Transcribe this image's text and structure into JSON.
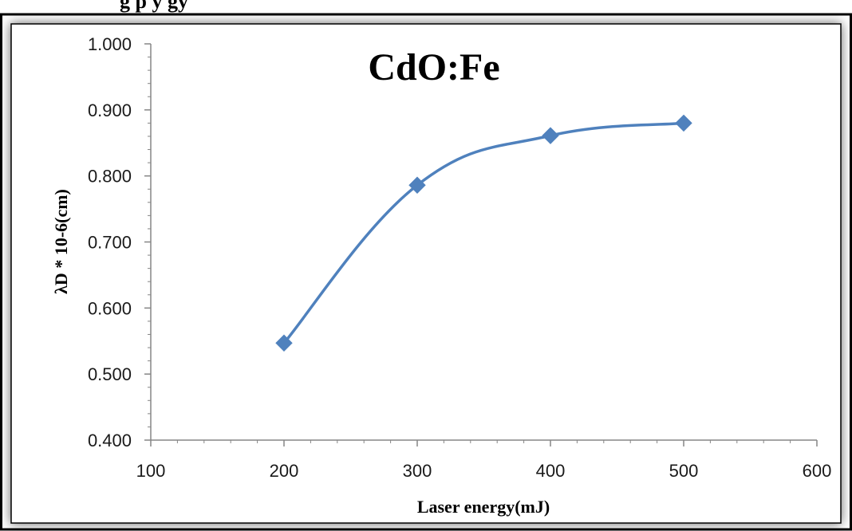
{
  "caption": {
    "text": "g                                   p    y                                               gy"
  },
  "chart_data": {
    "type": "line",
    "title": "CdO:Fe",
    "xlabel": "Laser energy(mJ)",
    "ylabel": "λD * 10-6(cm)",
    "xlim": [
      100,
      600
    ],
    "ylim": [
      0.4,
      1.0
    ],
    "x_ticks": [
      100,
      200,
      300,
      400,
      500,
      600
    ],
    "x_tick_labels": [
      "100",
      "200",
      "300",
      "400",
      "500",
      "600"
    ],
    "y_ticks": [
      0.4,
      0.5,
      0.6,
      0.7,
      0.8,
      0.9,
      1.0
    ],
    "y_tick_labels": [
      "0.400",
      "0.500",
      "0.600",
      "0.700",
      "0.800",
      "0.900",
      "1.000"
    ],
    "grid": false,
    "smooth": true,
    "marker": "diamond",
    "series_color": "#4f81bd",
    "x": [
      200,
      300,
      400,
      500
    ],
    "series": [
      {
        "values": [
          0.547,
          0.786,
          0.861,
          0.88
        ]
      }
    ]
  }
}
